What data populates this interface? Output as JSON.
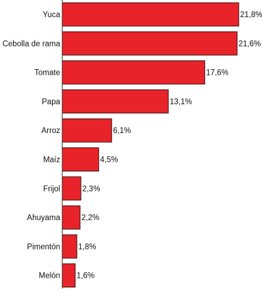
{
  "chart_data": {
    "type": "bar",
    "orientation": "horizontal",
    "categories": [
      "Yuca",
      "Cebolla de rama",
      "Tomate",
      "Papa",
      "Arroz",
      "Maíz",
      "Frijol",
      "Ahuyama",
      "Pimentón",
      "Melón"
    ],
    "values": [
      21.8,
      21.6,
      17.6,
      13.1,
      6.1,
      4.5,
      2.3,
      2.2,
      1.8,
      1.6
    ],
    "value_labels": [
      "21,8%",
      "21,6%",
      "17,6%",
      "13,1%",
      "6,1%",
      "4,5%",
      "2,3%",
      "2,2%",
      "1,8%",
      "1,6%"
    ],
    "xlim": [
      0,
      21.8
    ],
    "grid": false,
    "bar_color": "#e8242a",
    "bar_outline_color": "#3a0d0d"
  }
}
